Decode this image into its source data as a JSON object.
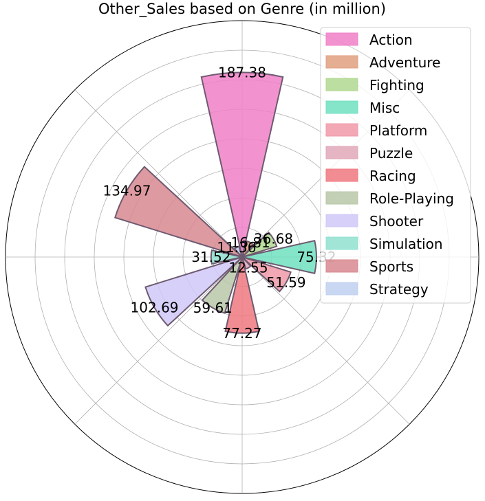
{
  "chart_data": {
    "type": "polar-bar",
    "title": "Other_Sales based on Genre (in million)",
    "categories": [
      "Action",
      "Adventure",
      "Fighting",
      "Misc",
      "Platform",
      "Puzzle",
      "Racing",
      "Role-Playing",
      "Shooter",
      "Simulation",
      "Sports",
      "Strategy"
    ],
    "values": [
      187.38,
      16.81,
      36.68,
      75.32,
      51.59,
      12.55,
      77.27,
      59.61,
      102.69,
      31.52,
      134.97,
      11.36
    ],
    "value_labels": [
      "187.38",
      "16.81",
      "36.68",
      "75.32",
      "51.59",
      "12.55",
      "77.27",
      "59.61",
      "102.69",
      "31.52",
      "134.97",
      "11.36"
    ],
    "colors": [
      "#f080c8",
      "#e0a080",
      "#b0d890",
      "#70e0c0",
      "#f09aa8",
      "#e0a8b8",
      "#f07880",
      "#b8c8a8",
      "#d0c8f8",
      "#90e0d0",
      "#d88890",
      "#c0d0f0"
    ],
    "rlim": [
      0,
      240
    ],
    "grid": true,
    "legend_position": "top-right"
  }
}
